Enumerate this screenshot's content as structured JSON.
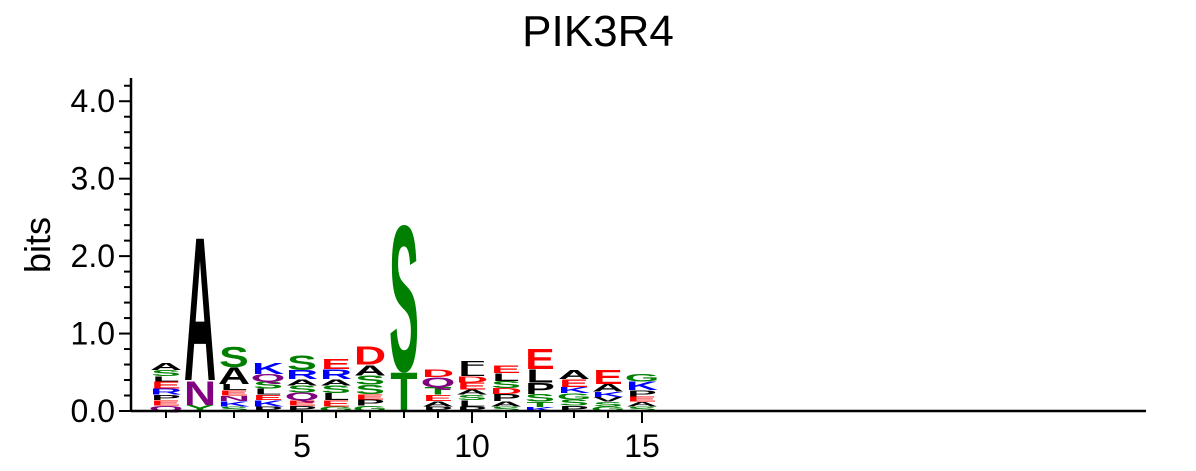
{
  "chart_data": {
    "type": "sequence-logo",
    "title": "PIK3R4",
    "ylabel": "bits",
    "xlabel": "",
    "ylim": [
      0,
      4.3
    ],
    "y_ticks": [
      "0.0",
      "1.0",
      "2.0",
      "3.0",
      "4.0"
    ],
    "x_ticks": [
      "5",
      "10",
      "15"
    ],
    "x_tick_values": [
      5,
      10,
      15
    ],
    "positions": [
      1,
      2,
      3,
      4,
      5,
      6,
      7,
      8,
      9,
      10,
      11,
      12,
      13,
      14,
      15
    ],
    "stacks": [
      [
        {
          "letter": "Q",
          "bits": 0.07
        },
        {
          "letter": "E",
          "bits": 0.07
        },
        {
          "letter": "P",
          "bits": 0.07
        },
        {
          "letter": "R",
          "bits": 0.08
        },
        {
          "letter": "E",
          "bits": 0.09
        },
        {
          "letter": "L",
          "bits": 0.07
        },
        {
          "letter": "S",
          "bits": 0.08
        },
        {
          "letter": "A",
          "bits": 0.09
        }
      ],
      [
        {
          "letter": "Y",
          "bits": 0.08
        },
        {
          "letter": "N",
          "bits": 0.32
        },
        {
          "letter": "A",
          "bits": 1.91
        }
      ],
      [
        {
          "letter": "S",
          "bits": 0.06
        },
        {
          "letter": "K",
          "bits": 0.07
        },
        {
          "letter": "N",
          "bits": 0.07
        },
        {
          "letter": "E",
          "bits": 0.07
        },
        {
          "letter": "L",
          "bits": 0.08
        },
        {
          "letter": "A",
          "bits": 0.22
        },
        {
          "letter": "S",
          "bits": 0.27
        }
      ],
      [
        {
          "letter": "P",
          "bits": 0.06
        },
        {
          "letter": "K",
          "bits": 0.08
        },
        {
          "letter": "E",
          "bits": 0.07
        },
        {
          "letter": "L",
          "bits": 0.08
        },
        {
          "letter": "S",
          "bits": 0.09
        },
        {
          "letter": "Q",
          "bits": 0.1
        },
        {
          "letter": "K",
          "bits": 0.15
        }
      ],
      [
        {
          "letter": "P",
          "bits": 0.07
        },
        {
          "letter": "E",
          "bits": 0.07
        },
        {
          "letter": "Q",
          "bits": 0.1
        },
        {
          "letter": "S",
          "bits": 0.09
        },
        {
          "letter": "A",
          "bits": 0.08
        },
        {
          "letter": "R",
          "bits": 0.12
        },
        {
          "letter": "S",
          "bits": 0.2
        }
      ],
      [
        {
          "letter": "G",
          "bits": 0.06
        },
        {
          "letter": "E",
          "bits": 0.08
        },
        {
          "letter": "L",
          "bits": 0.09
        },
        {
          "letter": "S",
          "bits": 0.1
        },
        {
          "letter": "A",
          "bits": 0.08
        },
        {
          "letter": "R",
          "bits": 0.13
        },
        {
          "letter": "E",
          "bits": 0.14
        }
      ],
      [
        {
          "letter": "G",
          "bits": 0.07
        },
        {
          "letter": "P",
          "bits": 0.08
        },
        {
          "letter": "E",
          "bits": 0.07
        },
        {
          "letter": "S",
          "bits": 0.12
        },
        {
          "letter": "S",
          "bits": 0.12
        },
        {
          "letter": "A",
          "bits": 0.14
        },
        {
          "letter": "D",
          "bits": 0.24
        }
      ],
      [
        {
          "letter": "T",
          "bits": 0.52
        },
        {
          "letter": "S",
          "bits": 1.94
        }
      ],
      [
        {
          "letter": "P",
          "bits": 0.06
        },
        {
          "letter": "A",
          "bits": 0.07
        },
        {
          "letter": "E",
          "bits": 0.08
        },
        {
          "letter": "T",
          "bits": 0.1
        },
        {
          "letter": "Q",
          "bits": 0.13
        },
        {
          "letter": "D",
          "bits": 0.1
        }
      ],
      [
        {
          "letter": "P",
          "bits": 0.06
        },
        {
          "letter": "L",
          "bits": 0.08
        },
        {
          "letter": "S",
          "bits": 0.07
        },
        {
          "letter": "A",
          "bits": 0.07
        },
        {
          "letter": "E",
          "bits": 0.09
        },
        {
          "letter": "D",
          "bits": 0.08
        },
        {
          "letter": "L",
          "bits": 0.1
        },
        {
          "letter": "F",
          "bits": 0.1
        }
      ],
      [
        {
          "letter": "S",
          "bits": 0.06
        },
        {
          "letter": "A",
          "bits": 0.07
        },
        {
          "letter": "P",
          "bits": 0.09
        },
        {
          "letter": "D",
          "bits": 0.08
        },
        {
          "letter": "S",
          "bits": 0.09
        },
        {
          "letter": "L",
          "bits": 0.1
        },
        {
          "letter": "E",
          "bits": 0.1
        }
      ],
      [
        {
          "letter": "K",
          "bits": 0.05
        },
        {
          "letter": "T",
          "bits": 0.07
        },
        {
          "letter": "S",
          "bits": 0.1
        },
        {
          "letter": "P",
          "bits": 0.15
        },
        {
          "letter": "L",
          "bits": 0.17
        },
        {
          "letter": "E",
          "bits": 0.27
        }
      ],
      [
        {
          "letter": "P",
          "bits": 0.07
        },
        {
          "letter": "S",
          "bits": 0.08
        },
        {
          "letter": "G",
          "bits": 0.08
        },
        {
          "letter": "K",
          "bits": 0.08
        },
        {
          "letter": "E",
          "bits": 0.1
        },
        {
          "letter": "A",
          "bits": 0.12
        }
      ],
      [
        {
          "letter": "G",
          "bits": 0.06
        },
        {
          "letter": "S",
          "bits": 0.06
        },
        {
          "letter": "V",
          "bits": 0.06
        },
        {
          "letter": "K",
          "bits": 0.07
        },
        {
          "letter": "A",
          "bits": 0.1
        },
        {
          "letter": "E",
          "bits": 0.19
        }
      ],
      [
        {
          "letter": "S",
          "bits": 0.06
        },
        {
          "letter": "A",
          "bits": 0.06
        },
        {
          "letter": "E",
          "bits": 0.07
        },
        {
          "letter": "P",
          "bits": 0.08
        },
        {
          "letter": "K",
          "bits": 0.11
        },
        {
          "letter": "G",
          "bits": 0.1
        }
      ]
    ],
    "letter_colors": {
      "A": "#000000",
      "F": "#000000",
      "I": "#000000",
      "L": "#000000",
      "M": "#000000",
      "P": "#000000",
      "V": "#000000",
      "W": "#000000",
      "C": "#008000",
      "G": "#008000",
      "S": "#008000",
      "T": "#008000",
      "Y": "#008000",
      "N": "#800080",
      "Q": "#800080",
      "H": "#0000ff",
      "K": "#0000ff",
      "R": "#0000ff",
      "D": "#ff0000",
      "E": "#ff0000"
    }
  }
}
